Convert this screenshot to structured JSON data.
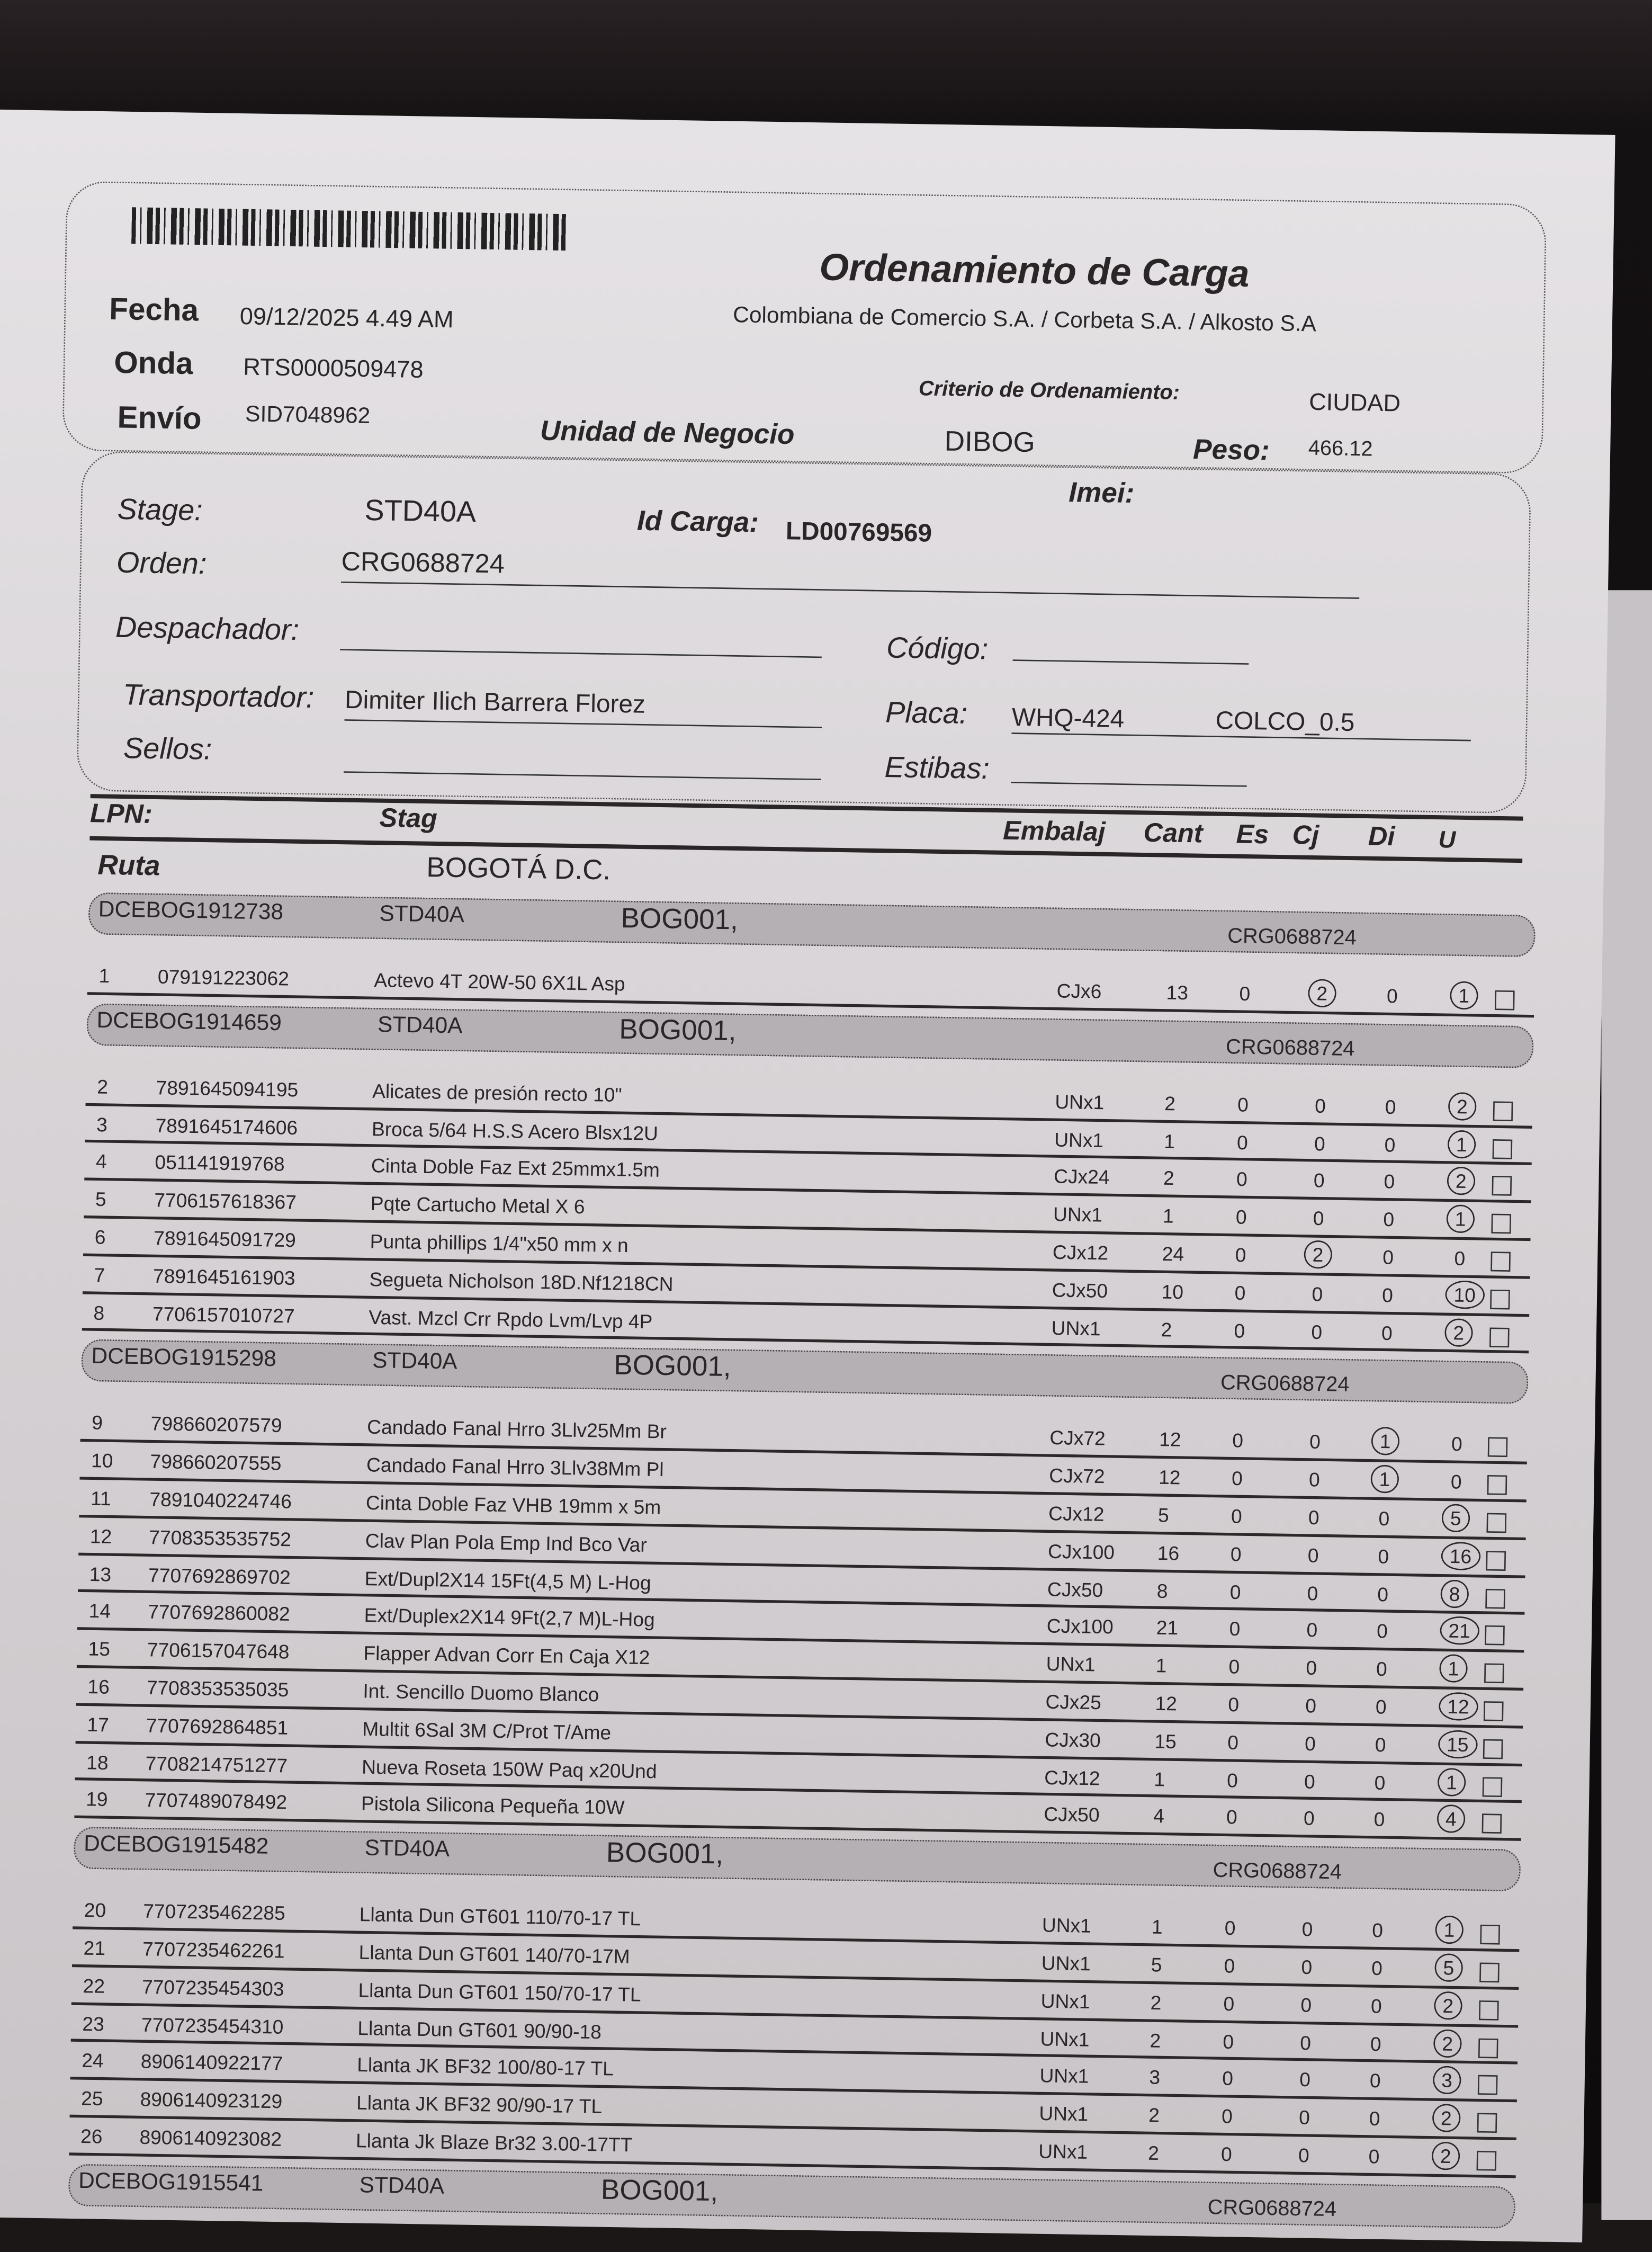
{
  "document": {
    "title": "Ordenamiento de Carga",
    "company": "Colombiana de Comercio S.A. / Corbeta S.A. / Alkosto S.A",
    "fields": {
      "fecha_label": "Fecha",
      "fecha": "09/12/2025 4.49 AM",
      "onda_label": "Onda",
      "onda": "RTS0000509478",
      "envio_label": "Envío",
      "envio": "SID7048962",
      "criterio_label": "Criterio de Ordenamiento:",
      "criterio": "CIUDAD",
      "unidad_label": "Unidad de Negocio",
      "unidad": "DIBOG",
      "peso_label": "Peso:",
      "peso": "466.12",
      "imei_label": "Imei:",
      "stage_label": "Stage:",
      "stage": "STD40A",
      "idcarga_label": "Id Carga:",
      "idcarga": "LD00769569",
      "orden_label": "Orden:",
      "orden": "CRG0688724",
      "despachador_label": "Despachador:",
      "codigo_label": "Código:",
      "transportador_label": "Transportador:",
      "transportador": "Dimiter Ilich Barrera Florez",
      "placa_label": "Placa:",
      "placa": "WHQ-424",
      "placa_extra": "COLCO_0.5",
      "sellos_label": "Sellos:",
      "estibas_label": "Estibas:"
    },
    "table_header": {
      "lpn": "LPN:",
      "stag": "Stag",
      "embalaje": "Embalaj",
      "cant": "Cant",
      "es": "Es",
      "cj": "Cj",
      "di": "Di",
      "u": "U"
    },
    "ruta_label": "Ruta",
    "ruta": "BOGOTÁ D.C.",
    "groups": [
      {
        "lpn": "DCEBOG1912738",
        "stage": "STD40A",
        "loc": "BOG001,",
        "orden": "CRG0688724",
        "rows": [
          {
            "n": "1",
            "code": "079191223062",
            "desc": "Actevo 4T 20W-50 6X1L Asp",
            "emb": "CJx6",
            "cant": "13",
            "es": "0",
            "cj": "2",
            "di": "0",
            "u": "1",
            "circled": [
              "cj",
              "u"
            ]
          }
        ]
      },
      {
        "lpn": "DCEBOG1914659",
        "stage": "STD40A",
        "loc": "BOG001,",
        "orden": "CRG0688724",
        "rows": [
          {
            "n": "2",
            "code": "7891645094195",
            "desc": "Alicates de presión recto 10\"",
            "emb": "UNx1",
            "cant": "2",
            "es": "0",
            "cj": "0",
            "di": "0",
            "u": "2",
            "circled": [
              "u"
            ]
          },
          {
            "n": "3",
            "code": "7891645174606",
            "desc": "Broca 5/64 H.S.S Acero Blsx12U",
            "emb": "UNx1",
            "cant": "1",
            "es": "0",
            "cj": "0",
            "di": "0",
            "u": "1",
            "circled": [
              "u"
            ]
          },
          {
            "n": "4",
            "code": "051141919768",
            "desc": "Cinta Doble Faz Ext 25mmx1.5m",
            "emb": "CJx24",
            "cant": "2",
            "es": "0",
            "cj": "0",
            "di": "0",
            "u": "2",
            "circled": [
              "u"
            ]
          },
          {
            "n": "5",
            "code": "7706157618367",
            "desc": "Pqte Cartucho Metal X 6",
            "emb": "UNx1",
            "cant": "1",
            "es": "0",
            "cj": "0",
            "di": "0",
            "u": "1",
            "circled": [
              "u"
            ]
          },
          {
            "n": "6",
            "code": "7891645091729",
            "desc": "Punta phillips  1/4\"x50 mm x n",
            "emb": "CJx12",
            "cant": "24",
            "es": "0",
            "cj": "2",
            "di": "0",
            "u": "0",
            "circled": [
              "cj"
            ]
          },
          {
            "n": "7",
            "code": "7891645161903",
            "desc": "Segueta Nicholson 18D.Nf1218CN",
            "emb": "CJx50",
            "cant": "10",
            "es": "0",
            "cj": "0",
            "di": "0",
            "u": "10",
            "circled": [
              "u"
            ]
          },
          {
            "n": "8",
            "code": "7706157010727",
            "desc": "Vast. Mzcl Crr Rpdo Lvm/Lvp 4P",
            "emb": "UNx1",
            "cant": "2",
            "es": "0",
            "cj": "0",
            "di": "0",
            "u": "2",
            "circled": [
              "u"
            ]
          }
        ]
      },
      {
        "lpn": "DCEBOG1915298",
        "stage": "STD40A",
        "loc": "BOG001,",
        "orden": "CRG0688724",
        "rows": [
          {
            "n": "9",
            "code": "798660207579",
            "desc": "Candado Fanal Hrro 3Llv25Mm Br",
            "emb": "CJx72",
            "cant": "12",
            "es": "0",
            "cj": "0",
            "di": "1",
            "u": "0",
            "circled": [
              "di"
            ]
          },
          {
            "n": "10",
            "code": "798660207555",
            "desc": "Candado Fanal Hrro 3Llv38Mm Pl",
            "emb": "CJx72",
            "cant": "12",
            "es": "0",
            "cj": "0",
            "di": "1",
            "u": "0",
            "circled": [
              "di"
            ]
          },
          {
            "n": "11",
            "code": "7891040224746",
            "desc": "Cinta Doble Faz VHB 19mm x 5m",
            "emb": "CJx12",
            "cant": "5",
            "es": "0",
            "cj": "0",
            "di": "0",
            "u": "5",
            "circled": [
              "u"
            ]
          },
          {
            "n": "12",
            "code": "7708353535752",
            "desc": "Clav Plan Pola Emp Ind Bco Var",
            "emb": "CJx100",
            "cant": "16",
            "es": "0",
            "cj": "0",
            "di": "0",
            "u": "16",
            "circled": [
              "u"
            ]
          },
          {
            "n": "13",
            "code": "7707692869702",
            "desc": "Ext/Dupl2X14 15Ft(4,5 M) L-Hog",
            "emb": "CJx50",
            "cant": "8",
            "es": "0",
            "cj": "0",
            "di": "0",
            "u": "8",
            "circled": [
              "u"
            ]
          },
          {
            "n": "14",
            "code": "7707692860082",
            "desc": "Ext/Duplex2X14 9Ft(2,7 M)L-Hog",
            "emb": "CJx100",
            "cant": "21",
            "es": "0",
            "cj": "0",
            "di": "0",
            "u": "21",
            "circled": [
              "u"
            ]
          },
          {
            "n": "15",
            "code": "7706157047648",
            "desc": "Flapper Advan Corr En Caja X12",
            "emb": "UNx1",
            "cant": "1",
            "es": "0",
            "cj": "0",
            "di": "0",
            "u": "1",
            "circled": [
              "u"
            ]
          },
          {
            "n": "16",
            "code": "7708353535035",
            "desc": "Int. Sencillo Duomo Blanco",
            "emb": "CJx25",
            "cant": "12",
            "es": "0",
            "cj": "0",
            "di": "0",
            "u": "12",
            "circled": [
              "u"
            ]
          },
          {
            "n": "17",
            "code": "7707692864851",
            "desc": "Multit 6Sal 3M C/Prot T/Ame",
            "emb": "CJx30",
            "cant": "15",
            "es": "0",
            "cj": "0",
            "di": "0",
            "u": "15",
            "circled": [
              "u"
            ]
          },
          {
            "n": "18",
            "code": "7708214751277",
            "desc": "Nueva Roseta 150W Paq x20Und",
            "emb": "CJx12",
            "cant": "1",
            "es": "0",
            "cj": "0",
            "di": "0",
            "u": "1",
            "circled": [
              "u"
            ]
          },
          {
            "n": "19",
            "code": "7707489078492",
            "desc": "Pistola Silicona Pequeña 10W",
            "emb": "CJx50",
            "cant": "4",
            "es": "0",
            "cj": "0",
            "di": "0",
            "u": "4",
            "circled": [
              "u"
            ]
          }
        ]
      },
      {
        "lpn": "DCEBOG1915482",
        "stage": "STD40A",
        "loc": "BOG001,",
        "orden": "CRG0688724",
        "rows": [
          {
            "n": "20",
            "code": "7707235462285",
            "desc": "Llanta Dun GT601 110/70-17 TL",
            "emb": "UNx1",
            "cant": "1",
            "es": "0",
            "cj": "0",
            "di": "0",
            "u": "1",
            "circled": [
              "u"
            ]
          },
          {
            "n": "21",
            "code": "7707235462261",
            "desc": "Llanta Dun GT601 140/70-17M",
            "emb": "UNx1",
            "cant": "5",
            "es": "0",
            "cj": "0",
            "di": "0",
            "u": "5",
            "circled": [
              "u"
            ]
          },
          {
            "n": "22",
            "code": "7707235454303",
            "desc": "Llanta Dun GT601 150/70-17 TL",
            "emb": "UNx1",
            "cant": "2",
            "es": "0",
            "cj": "0",
            "di": "0",
            "u": "2",
            "circled": [
              "u"
            ]
          },
          {
            "n": "23",
            "code": "7707235454310",
            "desc": "Llanta Dun GT601 90/90-18",
            "emb": "UNx1",
            "cant": "2",
            "es": "0",
            "cj": "0",
            "di": "0",
            "u": "2",
            "circled": [
              "u"
            ]
          },
          {
            "n": "24",
            "code": "8906140922177",
            "desc": "Llanta JK BF32 100/80-17 TL",
            "emb": "UNx1",
            "cant": "3",
            "es": "0",
            "cj": "0",
            "di": "0",
            "u": "3",
            "circled": [
              "u"
            ]
          },
          {
            "n": "25",
            "code": "8906140923129",
            "desc": "Llanta JK BF32 90/90-17 TL",
            "emb": "UNx1",
            "cant": "2",
            "es": "0",
            "cj": "0",
            "di": "0",
            "u": "2",
            "circled": [
              "u"
            ]
          },
          {
            "n": "26",
            "code": "8906140923082",
            "desc": "Llanta Jk Blaze Br32 3.00-17TT",
            "emb": "UNx1",
            "cant": "2",
            "es": "0",
            "cj": "0",
            "di": "0",
            "u": "2",
            "circled": [
              "u"
            ]
          }
        ]
      },
      {
        "lpn": "DCEBOG1915541",
        "stage": "STD40A",
        "loc": "BOG001,",
        "orden": "CRG0688724",
        "rows": []
      }
    ]
  }
}
